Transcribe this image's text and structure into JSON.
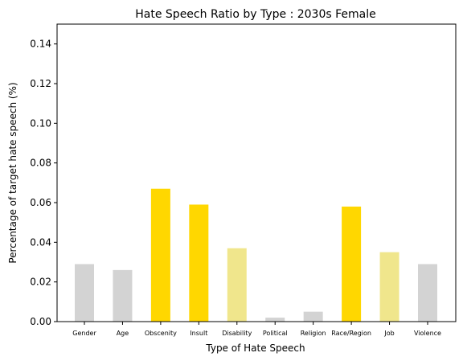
{
  "chart_data": {
    "type": "bar",
    "title": "Hate Speech Ratio by Type : 2030s Female",
    "xlabel": "Type of Hate Speech",
    "ylabel": "Percentage of target hate speech (%)",
    "ylim": [
      0,
      0.15
    ],
    "yticks": [
      "0.00",
      "0.02",
      "0.04",
      "0.06",
      "0.08",
      "0.10",
      "0.12",
      "0.14"
    ],
    "grid": false,
    "categories": [
      "Gender",
      "Age",
      "Obscenity",
      "Insult",
      "Disability",
      "Political",
      "Religion",
      "Race/Region",
      "Job",
      "Violence"
    ],
    "values": [
      0.029,
      0.026,
      0.067,
      0.059,
      0.037,
      0.002,
      0.005,
      0.058,
      0.035,
      0.029
    ],
    "bar_colors": [
      "#d3d3d3",
      "#d3d3d3",
      "#ffd700",
      "#ffd700",
      "#f0e68c",
      "#d3d3d3",
      "#d3d3d3",
      "#ffd700",
      "#f0e68c",
      "#d3d3d3"
    ]
  }
}
